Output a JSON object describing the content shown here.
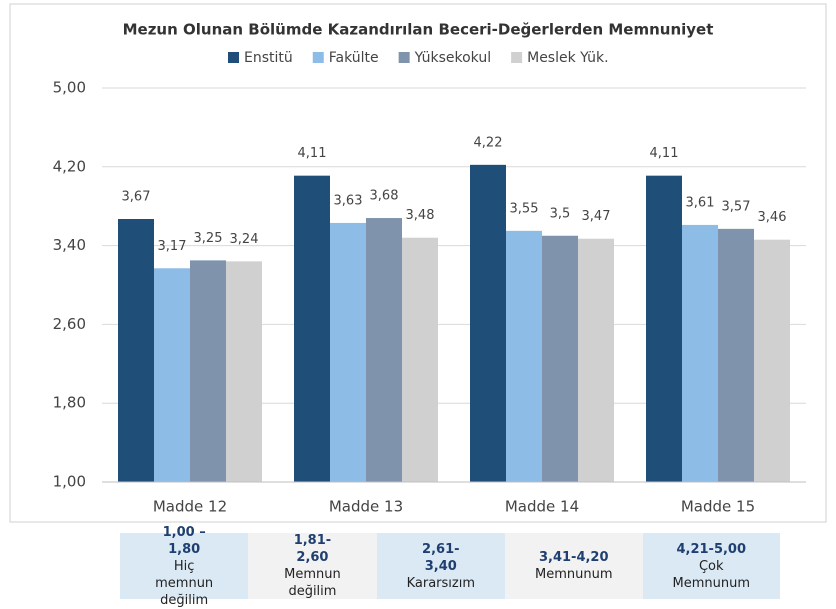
{
  "chart_data": {
    "type": "bar",
    "title": "Mezun Olunan Bölümde Kazandırılan Beceri-Değerlerden Memnuniyet",
    "categories": [
      "Madde 12",
      "Madde 13",
      "Madde 14",
      "Madde 15"
    ],
    "series": [
      {
        "name": "Enstitü",
        "color": "#1f4e79",
        "values": [
          3.67,
          4.11,
          4.22,
          4.11
        ],
        "value_labels": [
          "3,67",
          "4,11",
          "4,22",
          "4,11"
        ]
      },
      {
        "name": "Fakülte",
        "color": "#8dbde6",
        "values": [
          3.17,
          3.63,
          3.55,
          3.61
        ],
        "value_labels": [
          "3,17",
          "3,63",
          "3,55",
          "3,61"
        ]
      },
      {
        "name": "Yüksekokul",
        "color": "#7f94ac",
        "values": [
          3.25,
          3.68,
          3.5,
          3.57
        ],
        "value_labels": [
          "3,25",
          "3,68",
          "3,5",
          "3,57"
        ]
      },
      {
        "name": "Meslek Yük.",
        "color": "#d0d0d0",
        "values": [
          3.24,
          3.48,
          3.47,
          3.46
        ],
        "value_labels": [
          "3,24",
          "3,48",
          "3,47",
          "3,46"
        ]
      }
    ],
    "ylim": [
      1,
      5
    ],
    "yticks": [
      {
        "value": 1,
        "label": "1,00"
      },
      {
        "value": 1.8,
        "label": "1,80"
      },
      {
        "value": 2.6,
        "label": "2,60"
      },
      {
        "value": 3.4,
        "label": "3,40"
      },
      {
        "value": 4.2,
        "label": "4,20"
      },
      {
        "value": 5,
        "label": "5,00"
      }
    ],
    "grid": true,
    "legend": "top"
  },
  "scale_table": {
    "cells": [
      {
        "range": "1,00 –1,80",
        "label": "Hiç memnun değilim"
      },
      {
        "range": "1,81-2,60",
        "label": "Memnun değilim"
      },
      {
        "range": "2,61-3,40",
        "label": "Kararsızım"
      },
      {
        "range": "3,41-4,20",
        "label": "Memnunum"
      },
      {
        "range": "4,21-5,00",
        "label": "Çok Memnunum"
      }
    ]
  }
}
